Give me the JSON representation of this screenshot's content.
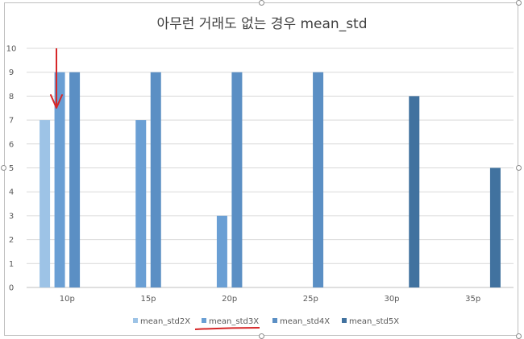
{
  "chart_data": {
    "type": "bar",
    "title": "아무런 거래도 없는 경우 mean_std",
    "categories": [
      "10p",
      "15p",
      "20p",
      "25p",
      "30p",
      "35p"
    ],
    "series": [
      {
        "name": "mean_std2X",
        "color": "#9dc3e6",
        "values": [
          7,
          null,
          null,
          null,
          null,
          null
        ]
      },
      {
        "name": "mean_std3X",
        "color": "#6a9fd4",
        "values": [
          9,
          7,
          3,
          null,
          null,
          null
        ]
      },
      {
        "name": "mean_std4X",
        "color": "#5b8fc4",
        "values": [
          9,
          9,
          9,
          9,
          null,
          null
        ]
      },
      {
        "name": "mean_std5X",
        "color": "#41729f",
        "values": [
          null,
          null,
          null,
          null,
          8,
          5
        ]
      }
    ],
    "ylim": [
      0,
      10
    ],
    "yticks": [
      0,
      1,
      2,
      3,
      4,
      5,
      6,
      7,
      8,
      9,
      10
    ],
    "grid": true,
    "legend": "bottom"
  },
  "annotations": {
    "arrow_color": "#d62728",
    "underline_color": "#d62728"
  }
}
